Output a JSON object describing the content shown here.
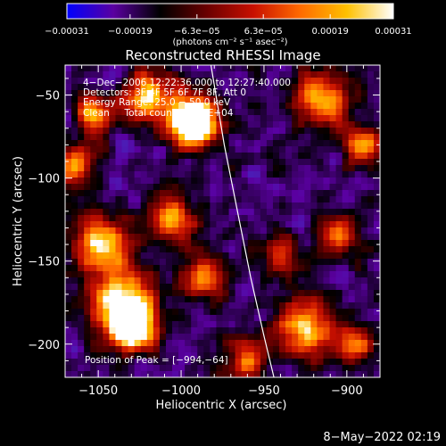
{
  "chart_data": {
    "type": "heatmap",
    "title": "Reconstructed RHESSI Image",
    "xlabel": "Heliocentric X (arcsec)",
    "ylabel": "Heliocentric Y (arcsec)",
    "xlim": [
      -1070,
      -880
    ],
    "ylim": [
      -220,
      -32
    ],
    "x_ticks": [
      -1050,
      -1000,
      -950,
      -900
    ],
    "x_tick_labels": [
      "−1050",
      "−1000",
      "−950",
      "−900"
    ],
    "y_ticks": [
      -50,
      -100,
      -150,
      -200
    ],
    "y_tick_labels": [
      "−50",
      "−100",
      "−150",
      "−200"
    ],
    "colorbar": {
      "min": -0.00031,
      "max": 0.00031,
      "ticks": [
        -0.00031,
        -0.00019,
        -6.3e-05,
        6.3e-05,
        0.00019,
        0.00031
      ],
      "tick_labels": [
        "−0.00031",
        "−0.00019",
        "−6.3e−05",
        "6.3e−05",
        "0.00019",
        "0.00031"
      ],
      "unit_label": "(photons cm⁻² s⁻¹ asec⁻²)",
      "colors": [
        "#0000ff",
        "#5a00a0",
        "#000000",
        "#6a0000",
        "#c81000",
        "#ff6a00",
        "#ffc000",
        "#ffffff"
      ]
    },
    "annotations": [
      "4−Dec−2006 12:22:36.000 to 12:27:40.000",
      "Detectors: 3F 4F 5F 6F 7F 8F, Att 0",
      "Energy Range: 25.0 − 50.0 keV",
      "Clean     Total counts: 1.00E+04",
      "Position of Peak = [−994,−64]"
    ],
    "peak": [
      -994,
      -64
    ],
    "limb_curve": [
      [
        -982,
        -32
      ],
      [
        -974,
        -80
      ],
      [
        -966,
        -120
      ],
      [
        -958,
        -160
      ],
      [
        -950,
        -195
      ],
      [
        -944,
        -220
      ]
    ],
    "sources": [
      {
        "x": -993,
        "y": -65,
        "r": 10,
        "v": 1.0
      },
      {
        "x": -1020,
        "y": -52,
        "r": 11,
        "v": 0.55
      },
      {
        "x": -1052,
        "y": -62,
        "r": 8,
        "v": 0.5
      },
      {
        "x": -1064,
        "y": -92,
        "r": 8,
        "v": 0.55
      },
      {
        "x": -1048,
        "y": -140,
        "r": 12,
        "v": 0.6
      },
      {
        "x": -1035,
        "y": -175,
        "r": 13,
        "v": 0.62
      },
      {
        "x": -1030,
        "y": -190,
        "r": 10,
        "v": 0.7
      },
      {
        "x": -1005,
        "y": -125,
        "r": 10,
        "v": 0.5
      },
      {
        "x": -985,
        "y": -160,
        "r": 9,
        "v": 0.45
      },
      {
        "x": -915,
        "y": -52,
        "r": 11,
        "v": 0.55
      },
      {
        "x": -890,
        "y": -80,
        "r": 8,
        "v": 0.5
      },
      {
        "x": -925,
        "y": -190,
        "r": 12,
        "v": 0.55
      },
      {
        "x": -895,
        "y": -200,
        "r": 8,
        "v": 0.5
      },
      {
        "x": -940,
        "y": -145,
        "r": 8,
        "v": 0.45
      },
      {
        "x": -960,
        "y": -210,
        "r": 8,
        "v": 0.45
      },
      {
        "x": -905,
        "y": -135,
        "r": 8,
        "v": 0.45
      }
    ],
    "timestamp": "8−May−2022 02:19"
  }
}
